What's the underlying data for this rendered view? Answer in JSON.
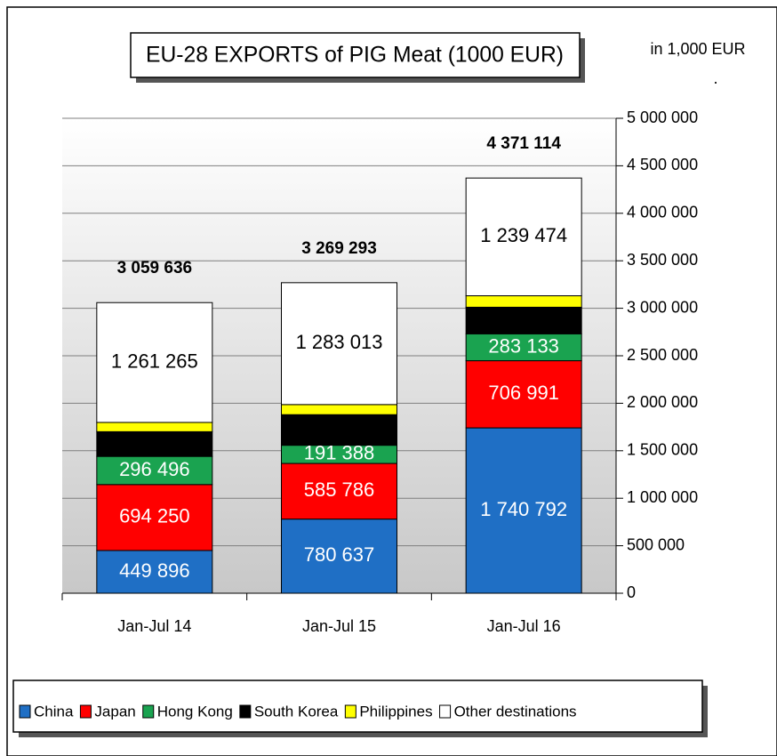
{
  "chart_data": {
    "type": "stacked_bar",
    "title": "EU-28 EXPORTS of PIG Meat (1000 EUR)",
    "unit_note": "in 1,000 EUR",
    "unit_mark": ".",
    "categories": [
      "Jan-Jul 14",
      "Jan-Jul 15",
      "Jan-Jul 16"
    ],
    "series": [
      {
        "name": "China",
        "color": "#1f6fc5",
        "label_color": "#ffffff",
        "values": [
          449896,
          780637,
          1740792
        ],
        "value_labels": [
          "449 896",
          "780 637",
          "1 740 792"
        ]
      },
      {
        "name": "Japan",
        "color": "#ff0000",
        "label_color": "#ffffff",
        "values": [
          694250,
          585786,
          706991
        ],
        "value_labels": [
          "694 250",
          "585 786",
          "706 991"
        ]
      },
      {
        "name": "Hong Kong",
        "color": "#1aa350",
        "label_color": "#ffffff",
        "values": [
          296496,
          191388,
          283133
        ],
        "value_labels": [
          "296 496",
          "191 388",
          "283 133"
        ]
      },
      {
        "name": "South Korea",
        "color": "#000000",
        "label_color": "#ffffff",
        "values": [
          260000,
          322000,
          280000
        ],
        "value_labels": [
          null,
          null,
          null
        ]
      },
      {
        "name": "Philippines",
        "color": "#ffff00",
        "label_color": "#000000",
        "values": [
          97729,
          106469,
          120724
        ],
        "value_labels": [
          null,
          null,
          null
        ]
      },
      {
        "name": "Other destinations",
        "color": "#ffffff",
        "label_color": "#000000",
        "values": [
          1261265,
          1283013,
          1239474
        ],
        "value_labels": [
          "1 261 265",
          "1 283 013",
          "1 239 474"
        ]
      }
    ],
    "totals": [
      3059636,
      3269293,
      4371114
    ],
    "total_labels": [
      "3 059 636",
      "3 269 293",
      "4 371 114"
    ],
    "ylim": [
      0,
      5000000
    ],
    "yticks": [
      0,
      {
        "value": 500000,
        "label": "500 000"
      },
      {
        "value": 1000000,
        "label": "1 000 000"
      },
      {
        "value": 1500000,
        "label": "1 500 000"
      },
      {
        "value": 2000000,
        "label": "2 000 000"
      },
      {
        "value": 2500000,
        "label": "2 500 000"
      },
      {
        "value": 3000000,
        "label": "3 000 000"
      },
      {
        "value": 3500000,
        "label": "3 500 000"
      },
      {
        "value": 4000000,
        "label": "4 000 000"
      },
      {
        "value": 4500000,
        "label": "4 500 000"
      },
      {
        "value": 5000000,
        "label": "5 000 000"
      }
    ],
    "grid": true,
    "legend": "bottom"
  }
}
